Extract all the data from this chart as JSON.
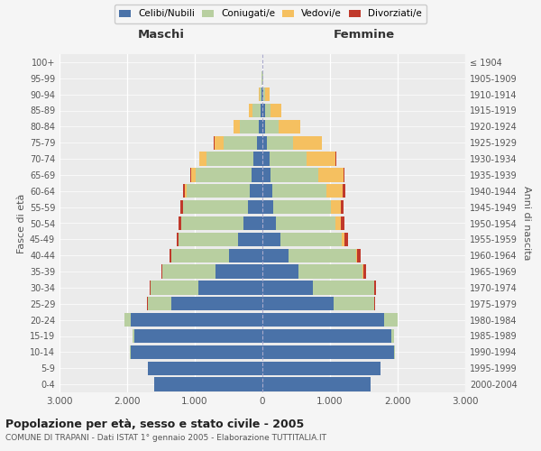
{
  "age_groups": [
    "0-4",
    "5-9",
    "10-14",
    "15-19",
    "20-24",
    "25-29",
    "30-34",
    "35-39",
    "40-44",
    "45-49",
    "50-54",
    "55-59",
    "60-64",
    "65-69",
    "70-74",
    "75-79",
    "80-84",
    "85-89",
    "90-94",
    "95-99",
    "100+"
  ],
  "birth_years": [
    "2000-2004",
    "1995-1999",
    "1990-1994",
    "1985-1989",
    "1980-1984",
    "1975-1979",
    "1970-1974",
    "1965-1969",
    "1960-1964",
    "1955-1959",
    "1950-1954",
    "1945-1949",
    "1940-1944",
    "1935-1939",
    "1930-1934",
    "1925-1929",
    "1920-1924",
    "1915-1919",
    "1910-1914",
    "1905-1909",
    "≤ 1904"
  ],
  "males": {
    "celibe": [
      1600,
      1700,
      1950,
      1900,
      1950,
      1350,
      950,
      700,
      500,
      360,
      280,
      220,
      190,
      160,
      130,
      80,
      50,
      30,
      10,
      3,
      2
    ],
    "coniugato": [
      0,
      0,
      5,
      20,
      90,
      350,
      700,
      780,
      850,
      880,
      920,
      950,
      930,
      830,
      700,
      500,
      280,
      120,
      35,
      5,
      2
    ],
    "vedovo": [
      0,
      0,
      0,
      0,
      0,
      0,
      0,
      0,
      1,
      2,
      5,
      10,
      30,
      60,
      100,
      130,
      100,
      50,
      10,
      2,
      0
    ],
    "divorziato": [
      0,
      0,
      0,
      0,
      2,
      5,
      15,
      20,
      25,
      30,
      30,
      30,
      25,
      15,
      10,
      5,
      2,
      0,
      0,
      0,
      0
    ]
  },
  "females": {
    "nubile": [
      1600,
      1750,
      1950,
      1900,
      1800,
      1050,
      750,
      530,
      380,
      270,
      200,
      160,
      140,
      120,
      100,
      70,
      40,
      35,
      15,
      5,
      2
    ],
    "coniugata": [
      0,
      0,
      10,
      50,
      200,
      600,
      900,
      950,
      1000,
      900,
      880,
      850,
      800,
      700,
      550,
      380,
      200,
      80,
      30,
      5,
      2
    ],
    "vedova": [
      0,
      0,
      0,
      0,
      1,
      2,
      5,
      10,
      20,
      40,
      80,
      150,
      250,
      380,
      430,
      430,
      320,
      170,
      55,
      8,
      1
    ],
    "divorziata": [
      0,
      0,
      0,
      0,
      3,
      10,
      30,
      40,
      55,
      50,
      50,
      40,
      30,
      15,
      10,
      5,
      2,
      0,
      0,
      0,
      0
    ]
  },
  "colors": {
    "celibe": "#4a72a8",
    "coniugato": "#b8cfa0",
    "vedovo": "#f5c060",
    "divorziato": "#c0392b"
  },
  "xlim": 3000,
  "title": "Popolazione per età, sesso e stato civile - 2005",
  "subtitle": "COMUNE DI TRAPANI - Dati ISTAT 1° gennaio 2005 - Elaborazione TUTTITALIA.IT",
  "legend_labels": [
    "Celibi/Nubili",
    "Coniugati/e",
    "Vedovi/e",
    "Divorziati/e"
  ],
  "xlabel_left": "Maschi",
  "xlabel_right": "Femmine",
  "ylabel_left": "Fasce di età",
  "ylabel_right": "Anni di nascita",
  "bg_color": "#f5f5f5",
  "plot_bg": "#ebebeb"
}
